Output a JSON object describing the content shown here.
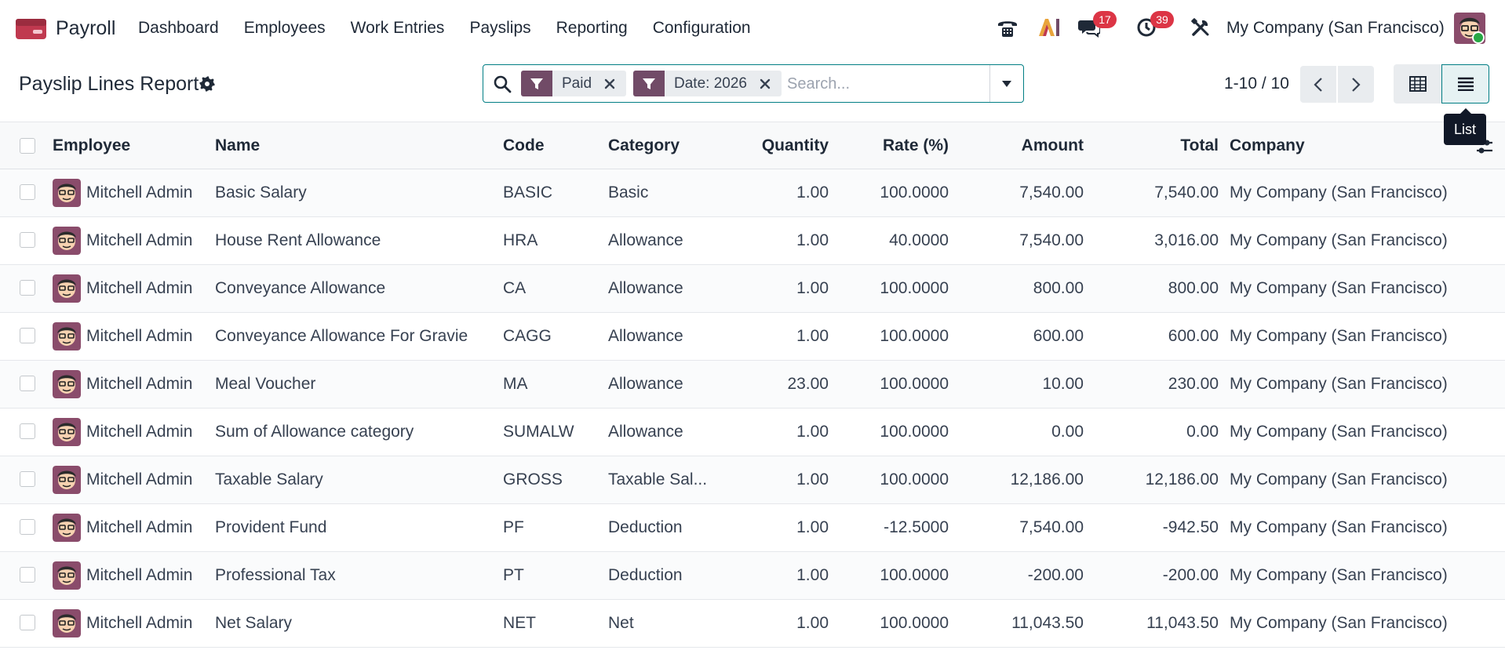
{
  "app": {
    "name": "Payroll",
    "menu": [
      "Dashboard",
      "Employees",
      "Work Entries",
      "Payslips",
      "Reporting",
      "Configuration"
    ],
    "icons": [
      "phone-icon",
      "ai-icon",
      "chat-icon",
      "activity-icon",
      "debug-tools-icon"
    ],
    "messages_badge": "17",
    "activities_badge": "39",
    "company": "My Company (San Francisco)"
  },
  "control": {
    "title": "Payslip Lines Report",
    "facets": [
      "Paid",
      "Date: 2026"
    ],
    "search_placeholder": "Search...",
    "pager": "1-10 / 10",
    "tooltip": "List"
  },
  "table": {
    "columns": {
      "employee": "Employee",
      "name": "Name",
      "code": "Code",
      "category": "Category",
      "quantity": "Quantity",
      "rate": "Rate (%)",
      "amount": "Amount",
      "total": "Total",
      "company": "Company"
    },
    "rows": [
      {
        "employee": "Mitchell Admin",
        "name": "Basic Salary",
        "code": "BASIC",
        "category": "Basic",
        "quantity": "1.00",
        "rate": "100.0000",
        "amount": "7,540.00",
        "total": "7,540.00",
        "company": "My Company (San Francisco)"
      },
      {
        "employee": "Mitchell Admin",
        "name": "House Rent Allowance",
        "code": "HRA",
        "category": "Allowance",
        "quantity": "1.00",
        "rate": "40.0000",
        "amount": "7,540.00",
        "total": "3,016.00",
        "company": "My Company (San Francisco)"
      },
      {
        "employee": "Mitchell Admin",
        "name": "Conveyance Allowance",
        "code": "CA",
        "category": "Allowance",
        "quantity": "1.00",
        "rate": "100.0000",
        "amount": "800.00",
        "total": "800.00",
        "company": "My Company (San Francisco)"
      },
      {
        "employee": "Mitchell Admin",
        "name": "Conveyance Allowance For Gravie",
        "code": "CAGG",
        "category": "Allowance",
        "quantity": "1.00",
        "rate": "100.0000",
        "amount": "600.00",
        "total": "600.00",
        "company": "My Company (San Francisco)"
      },
      {
        "employee": "Mitchell Admin",
        "name": "Meal Voucher",
        "code": "MA",
        "category": "Allowance",
        "quantity": "23.00",
        "rate": "100.0000",
        "amount": "10.00",
        "total": "230.00",
        "company": "My Company (San Francisco)"
      },
      {
        "employee": "Mitchell Admin",
        "name": "Sum of Allowance category",
        "code": "SUMALW",
        "category": "Allowance",
        "quantity": "1.00",
        "rate": "100.0000",
        "amount": "0.00",
        "total": "0.00",
        "company": "My Company (San Francisco)"
      },
      {
        "employee": "Mitchell Admin",
        "name": "Taxable Salary",
        "code": "GROSS",
        "category": "Taxable Sal...",
        "quantity": "1.00",
        "rate": "100.0000",
        "amount": "12,186.00",
        "total": "12,186.00",
        "company": "My Company (San Francisco)"
      },
      {
        "employee": "Mitchell Admin",
        "name": "Provident Fund",
        "code": "PF",
        "category": "Deduction",
        "quantity": "1.00",
        "rate": "-12.5000",
        "amount": "7,540.00",
        "total": "-942.50",
        "company": "My Company (San Francisco)"
      },
      {
        "employee": "Mitchell Admin",
        "name": "Professional Tax",
        "code": "PT",
        "category": "Deduction",
        "quantity": "1.00",
        "rate": "100.0000",
        "amount": "-200.00",
        "total": "-200.00",
        "company": "My Company (San Francisco)"
      },
      {
        "employee": "Mitchell Admin",
        "name": "Net Salary",
        "code": "NET",
        "category": "Net",
        "quantity": "1.00",
        "rate": "100.0000",
        "amount": "11,043.50",
        "total": "11,043.50",
        "company": "My Company (San Francisco)"
      }
    ]
  },
  "colors": {
    "brand": "#714b67",
    "accent": "#017e84",
    "badge": "#dc3545"
  }
}
